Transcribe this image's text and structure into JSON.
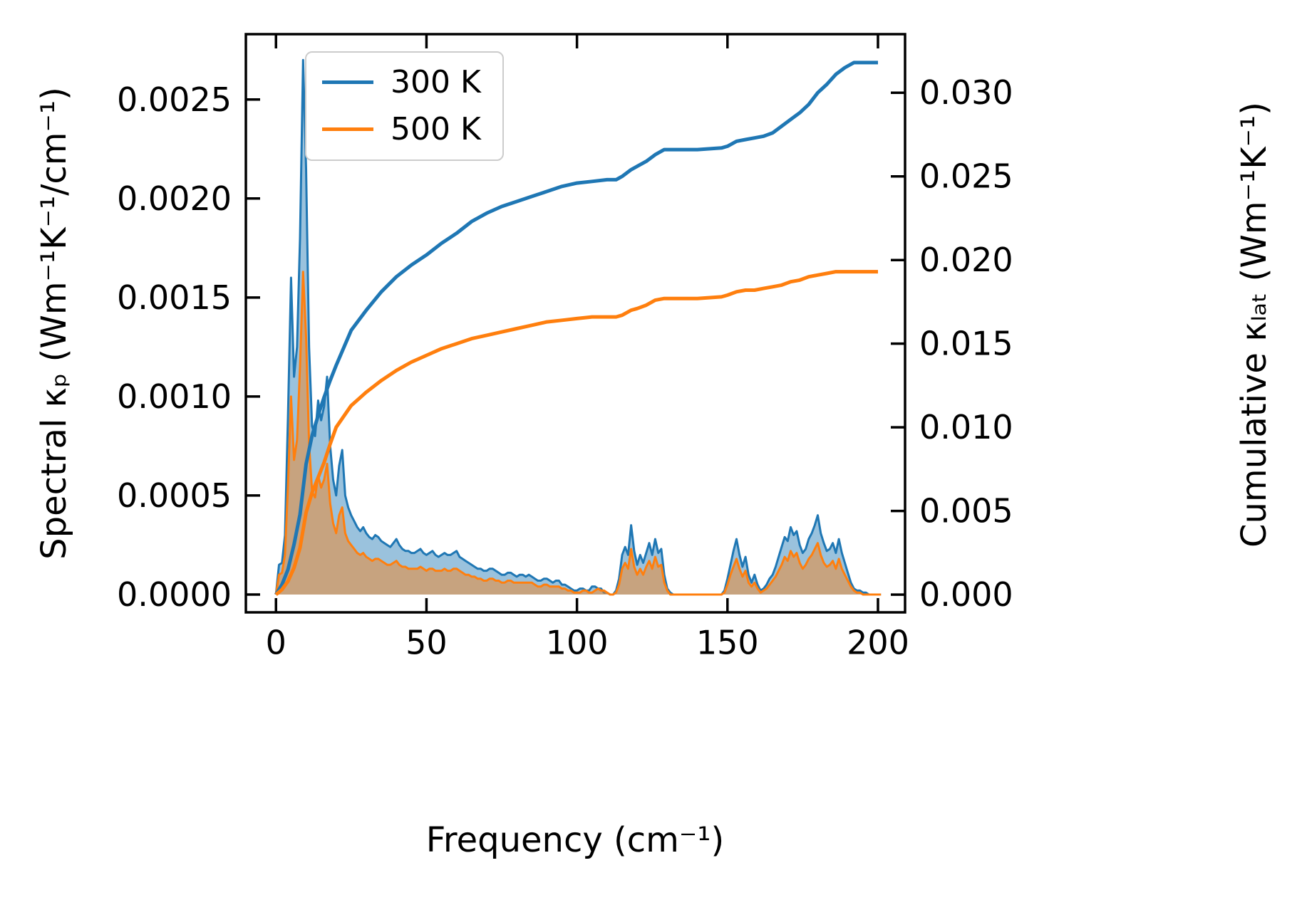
{
  "chart_data": {
    "type": "area+line",
    "title": "",
    "xlabel": "Frequency (cm⁻¹)",
    "ylabel_left": "Spectral κₚ (Wm⁻¹K⁻¹/cm⁻¹)",
    "ylabel_right": "Cumulative κₗₐₜ (Wm⁻¹K⁻¹)",
    "axes": {
      "xlim": [
        -10,
        209
      ],
      "ylim_left": [
        -9e-05,
        0.00283
      ],
      "ylim_right": [
        -0.00106,
        0.0335
      ],
      "xticks": [
        0,
        50,
        100,
        150,
        200
      ],
      "yticks_left": [
        0,
        0.0005,
        0.001,
        0.0015,
        0.002,
        0.0025
      ],
      "yticks_right": [
        0,
        0.005,
        0.01,
        0.015,
        0.02,
        0.025,
        0.03
      ],
      "grid": false,
      "tick_direction": "in"
    },
    "legend": {
      "location": "upper left",
      "entries": [
        {
          "label": "300 K",
          "color": "#1f77b4"
        },
        {
          "label": "500 K",
          "color": "#ff7f0e"
        }
      ]
    },
    "series": [
      {
        "id": "spectral-300k",
        "name": "Spectral κₚ 300 K",
        "type": "area",
        "axis": "left",
        "color": "#1f77b4",
        "fill_opacity": 0.45,
        "x0": 0,
        "dx": 1,
        "unit": 1e-05,
        "values": [
          0,
          15,
          16,
          30,
          90,
          160,
          110,
          125,
          180,
          270,
          215,
          125,
          85,
          80,
          98,
          88,
          95,
          110,
          75,
          58,
          50,
          65,
          73,
          50,
          44,
          40,
          37,
          34,
          32,
          34,
          31,
          29,
          28,
          30,
          29,
          27,
          26,
          25,
          24,
          26,
          28,
          25,
          23,
          22,
          22,
          21,
          21,
          22,
          23,
          21,
          20,
          21,
          22,
          20,
          19,
          20,
          21,
          20,
          20,
          21,
          22,
          19,
          18,
          17,
          16,
          15,
          14,
          13,
          13,
          12,
          12,
          13,
          13,
          12,
          11,
          10,
          10,
          11,
          11,
          10,
          9,
          10,
          10,
          9,
          10,
          9,
          8,
          7,
          7,
          8,
          8,
          7,
          6,
          7,
          7,
          5,
          5,
          4,
          3,
          2,
          2,
          3,
          3,
          2,
          2,
          4,
          4,
          3,
          3,
          1,
          1,
          0,
          0,
          2,
          8,
          20,
          24,
          20,
          35,
          22,
          15,
          20,
          16,
          21,
          26,
          20,
          28,
          21,
          23,
          10,
          3,
          1,
          0,
          0,
          0,
          0,
          0,
          0,
          0,
          0,
          0,
          0,
          0,
          0,
          0,
          0,
          0,
          0,
          0,
          2,
          8,
          15,
          22,
          28,
          20,
          14,
          19,
          10,
          6,
          10,
          5,
          2,
          3,
          5,
          8,
          10,
          14,
          19,
          24,
          29,
          27,
          34,
          30,
          32,
          25,
          21,
          23,
          28,
          31,
          35,
          40,
          31,
          26,
          22,
          23,
          26,
          21,
          28,
          21,
          16,
          11,
          6,
          3,
          2,
          2,
          1,
          1,
          0,
          0,
          0,
          0,
          0
        ]
      },
      {
        "id": "spectral-500k",
        "name": "Spectral κₚ 500 K",
        "type": "area",
        "axis": "left",
        "color": "#ff7f0e",
        "fill_opacity": 0.45,
        "x0": 0,
        "dx": 1,
        "unit": 1e-05,
        "values": [
          0,
          10,
          11,
          20,
          55,
          100,
          68,
          78,
          115,
          163,
          130,
          76,
          52,
          49,
          60,
          54,
          58,
          66,
          46,
          36,
          31,
          40,
          44,
          31,
          27,
          25,
          23,
          21,
          20,
          21,
          19,
          18,
          17,
          18,
          18,
          17,
          16,
          15,
          15,
          16,
          17,
          15,
          14,
          14,
          13,
          13,
          13,
          13,
          14,
          13,
          12,
          13,
          13,
          12,
          12,
          12,
          13,
          12,
          12,
          13,
          13,
          12,
          11,
          10,
          10,
          9,
          9,
          8,
          8,
          7,
          7,
          8,
          8,
          7,
          7,
          6,
          6,
          7,
          7,
          6,
          6,
          6,
          6,
          6,
          6,
          6,
          5,
          4,
          4,
          5,
          5,
          4,
          4,
          4,
          4,
          3,
          3,
          2,
          2,
          1,
          1,
          1,
          2,
          2,
          1,
          1,
          2,
          3,
          2,
          2,
          1,
          0,
          0,
          1,
          5,
          13,
          16,
          13,
          23,
          14,
          10,
          13,
          10,
          14,
          17,
          13,
          19,
          14,
          15,
          6,
          2,
          0,
          0,
          0,
          0,
          0,
          0,
          0,
          0,
          0,
          0,
          0,
          0,
          0,
          0,
          0,
          0,
          0,
          0,
          1,
          5,
          10,
          14,
          18,
          13,
          9,
          12,
          6,
          4,
          6,
          3,
          1,
          2,
          3,
          5,
          7,
          9,
          12,
          15,
          19,
          17,
          22,
          19,
          21,
          16,
          13,
          15,
          18,
          20,
          23,
          26,
          20,
          16,
          14,
          15,
          17,
          13,
          18,
          13,
          10,
          7,
          4,
          2,
          1,
          1,
          0,
          0,
          0,
          0,
          0,
          0,
          0
        ]
      },
      {
        "id": "cumulative-300k",
        "name": "Cumulative κₗₐₜ 300 K",
        "type": "line",
        "axis": "right",
        "color": "#1f77b4",
        "unit": 0.0001,
        "x": [
          0,
          2,
          4,
          6,
          8,
          10,
          12,
          14,
          16,
          18,
          20,
          25,
          30,
          35,
          40,
          45,
          50,
          55,
          60,
          65,
          70,
          75,
          80,
          85,
          90,
          95,
          100,
          105,
          110,
          113,
          115,
          118,
          120,
          123,
          126,
          129,
          132,
          140,
          148,
          150,
          153,
          156,
          159,
          162,
          165,
          168,
          171,
          174,
          177,
          180,
          183,
          186,
          189,
          192,
          195,
          200
        ],
        "values": [
          0,
          6,
          15,
          30,
          48,
          78,
          95,
          107,
          118,
          128,
          137,
          158,
          170,
          181,
          190,
          197,
          203,
          210,
          216,
          223,
          228,
          232,
          235,
          238,
          241,
          244,
          246,
          247,
          248,
          248,
          250,
          254,
          256,
          259,
          263,
          266,
          266,
          266,
          267,
          268,
          271,
          272,
          273,
          274,
          276,
          280,
          284,
          288,
          293,
          300,
          305,
          311,
          315,
          318,
          318,
          318
        ]
      },
      {
        "id": "cumulative-500k",
        "name": "Cumulative κₗₐₜ 500 K",
        "type": "line",
        "axis": "right",
        "color": "#ff7f0e",
        "unit": 0.0001,
        "x": [
          0,
          2,
          4,
          6,
          8,
          10,
          12,
          14,
          16,
          18,
          20,
          25,
          30,
          35,
          40,
          45,
          50,
          55,
          60,
          65,
          70,
          75,
          80,
          85,
          90,
          95,
          100,
          105,
          110,
          113,
          115,
          118,
          120,
          123,
          126,
          129,
          132,
          140,
          148,
          150,
          153,
          156,
          159,
          162,
          165,
          168,
          171,
          174,
          177,
          180,
          183,
          186,
          189,
          192,
          195,
          200
        ],
        "values": [
          0,
          3,
          8,
          16,
          28,
          49,
          61,
          70,
          79,
          90,
          100,
          113,
          121,
          128,
          134,
          139,
          143,
          147,
          150,
          153,
          155,
          157,
          159,
          161,
          163,
          164,
          165,
          166,
          166,
          166,
          167,
          170,
          171,
          173,
          176,
          177,
          177,
          177,
          178,
          179,
          181,
          182,
          182,
          183,
          184,
          185,
          187,
          188,
          190,
          191,
          192,
          193,
          193,
          193,
          193,
          193
        ]
      }
    ]
  }
}
